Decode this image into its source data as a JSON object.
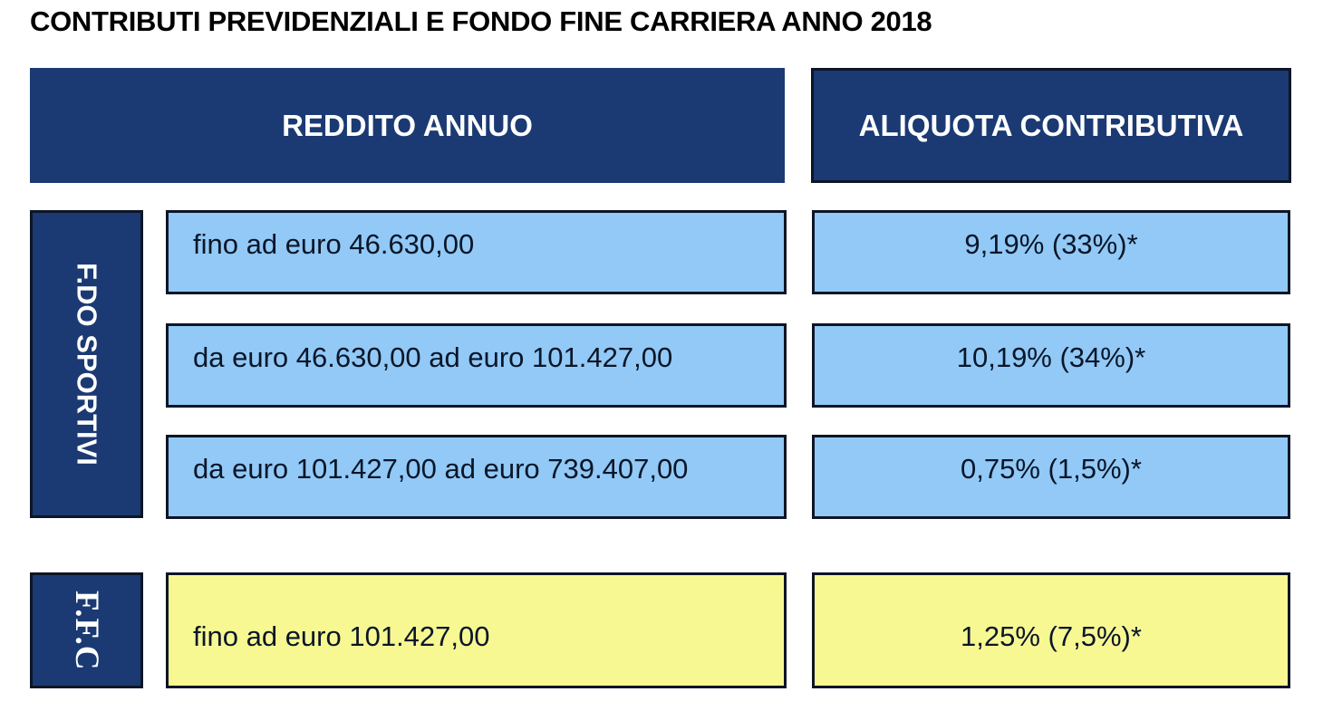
{
  "title": "CONTRIBUTI PREVIDENZIALI E FONDO FINE CARRIERA ANNO 2018",
  "table": {
    "headers": {
      "income": "REDDITO ANNUO",
      "rate": "ALIQUOTA CONTRIBUTIVA"
    },
    "sections": [
      {
        "label": "F.DO SPORTIVI",
        "rows": [
          {
            "income": "fino ad euro 46.630,00",
            "rate": "9,19% (33%)*"
          },
          {
            "income": "da euro 46.630,00 ad euro 101.427,00",
            "rate": "10,19% (34%)*"
          },
          {
            "income": "da euro 101.427,00 ad euro 739.407,00",
            "rate": "0,75% (1,5%)*"
          }
        ]
      },
      {
        "label": "F.F.C",
        "rows": [
          {
            "income": "fino ad euro 101.427,00",
            "rate": "1,25% (7,5%)*"
          }
        ]
      }
    ]
  },
  "colors": {
    "header_navy": "#1b3a73",
    "row_blue": "#92c9f6",
    "row_yellow": "#f8f893",
    "border": "#0d1526",
    "title_text": "#000000",
    "cell_text": "#0a1628"
  }
}
